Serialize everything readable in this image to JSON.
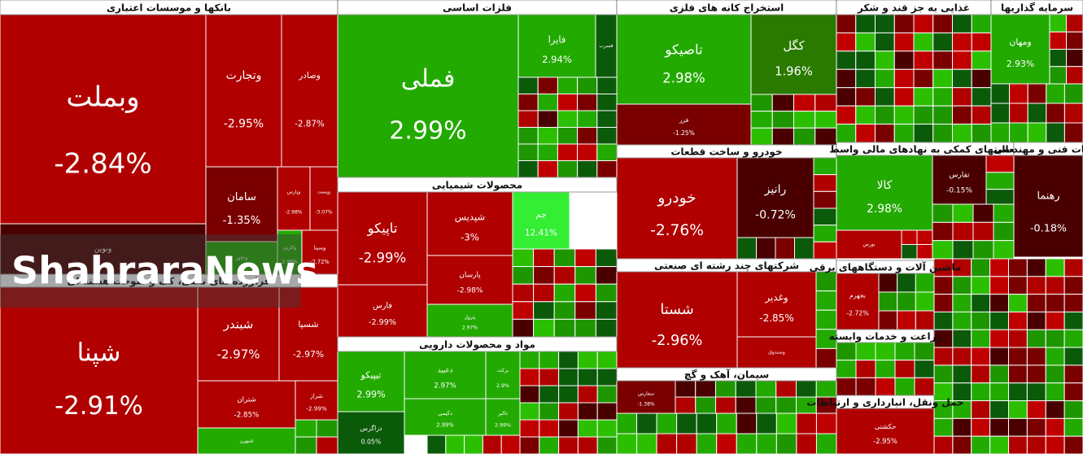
{
  "watermark": "ShahraraNews",
  "sectors": [
    {
      "title": "بانکها و موسسات اعتباری",
      "tiles": [
        {
          "name": "وبملت",
          "change": "-2.84%",
          "color": "#b00000"
        },
        {
          "name": "وتجارت",
          "change": "-2.95%",
          "color": "#b00000"
        },
        {
          "name": "وصادر",
          "change": "-2.87%",
          "color": "#b00000"
        },
        {
          "name": "سامان",
          "change": "-1.35%",
          "color": "#7a0000"
        },
        {
          "name": "وپارس",
          "change": "-2.98%",
          "color": "#b00000"
        },
        {
          "name": "وپست",
          "change": "-3.07%",
          "color": "#b00000"
        },
        {
          "name": "ونوین",
          "color": "#4a0000"
        },
        {
          "name": "وخاور",
          "color": "#22aa00"
        },
        {
          "name": "وکارین",
          "change": "2.98%",
          "color": "#22aa00"
        },
        {
          "name": "وسینا",
          "change": "-2.72%",
          "color": "#b00000"
        }
      ]
    },
    {
      "title": "فراورده های نفتی، کک و سوخت هسته ای",
      "tiles": [
        {
          "name": "شپنا",
          "change": "-2.91%",
          "color": "#b00000"
        },
        {
          "name": "شبندر",
          "change": "-2.97%",
          "color": "#b00000"
        },
        {
          "name": "شسپا",
          "change": "-2.97%",
          "color": "#b00000"
        },
        {
          "name": "شتران",
          "change": "-2.85%",
          "color": "#b00000"
        },
        {
          "name": "شبهرن",
          "color": "#22aa00"
        },
        {
          "name": "شراز",
          "change": "-2.99%",
          "color": "#b00000"
        }
      ]
    },
    {
      "title": "فلزات اساسی",
      "tiles": [
        {
          "name": "فملی",
          "change": "2.99%",
          "color": "#22aa00"
        },
        {
          "name": "فایرا",
          "change": "2.94%",
          "color": "#22aa00"
        },
        {
          "name": "فسرب",
          "color": "#0a5a0a"
        }
      ]
    },
    {
      "title": "محصولات شیمیایی",
      "tiles": [
        {
          "name": "تاپیکو",
          "change": "-2.99%",
          "color": "#b00000"
        },
        {
          "name": "فارس",
          "change": "-2.99%",
          "color": "#b00000"
        },
        {
          "name": "شپدیس",
          "change": "-3%",
          "color": "#b00000"
        },
        {
          "name": "جم",
          "change": "12.41%",
          "color": "#33ee33"
        },
        {
          "name": "پارسان",
          "change": "-2.98%",
          "color": "#b00000"
        },
        {
          "name": "پترول",
          "change": "2.97%",
          "color": "#22aa00"
        }
      ]
    },
    {
      "title": "مواد و محصولات دارویی",
      "tiles": [
        {
          "name": "تیپیکو",
          "change": "2.99%",
          "color": "#22aa00"
        },
        {
          "name": "دزاگرس",
          "change": "0.05%",
          "color": "#0a5a0a"
        },
        {
          "name": "دعبید",
          "change": "2.97%",
          "color": "#22aa00"
        },
        {
          "name": "برکت",
          "change": "2.9%",
          "color": "#22aa00"
        },
        {
          "name": "دکیمی",
          "change": "2.99%",
          "color": "#22aa00"
        },
        {
          "name": "دالبر",
          "change": "2.99%",
          "color": "#22aa00"
        }
      ]
    },
    {
      "title": "استخراج کانه های فلزی",
      "tiles": [
        {
          "name": "تاصیکو",
          "change": "2.98%",
          "color": "#22aa00"
        },
        {
          "name": "کگل",
          "change": "1.96%",
          "color": "#2a7a00"
        },
        {
          "name": "فزر",
          "change": "-1.25%",
          "color": "#7a0000"
        }
      ]
    },
    {
      "title": "خودرو و ساخت قطعات",
      "tiles": [
        {
          "name": "خودرو",
          "change": "-2.76%",
          "color": "#b00000"
        },
        {
          "name": "رانیز",
          "change": "-0.72%",
          "color": "#4a0000"
        }
      ]
    },
    {
      "title": "شرکتهای چند رشته ای صنعتی",
      "tiles": [
        {
          "name": "شستا",
          "change": "-2.96%",
          "color": "#b00000"
        },
        {
          "name": "وغدیر",
          "change": "-2.85%",
          "color": "#b00000"
        },
        {
          "name": "وصندوق",
          "color": "#b00000"
        }
      ]
    },
    {
      "title": "سیمان، آهک و گچ",
      "tiles": [
        {
          "name": "سفارس",
          "change": "-1.38%",
          "color": "#7a0000"
        }
      ]
    },
    {
      "title": "غذایی به جز قند و شکر",
      "tiles": []
    },
    {
      "title": "سرمایه گذاریها",
      "tiles": [
        {
          "name": "ومهان",
          "change": "2.93%",
          "color": "#22aa00"
        }
      ]
    },
    {
      "title": "فعالیتهای کمکی به نهادهای مالی واسط",
      "tiles": [
        {
          "name": "کالا",
          "change": "2.98%",
          "color": "#22aa00"
        },
        {
          "name": "تفارس",
          "change": "-0.15%",
          "color": "#4a0000"
        },
        {
          "name": "بورس",
          "color": "#b00000"
        }
      ]
    },
    {
      "title": "خدمات فنی و مهندسی",
      "tiles": [
        {
          "name": "رهنما",
          "change": "-0.18%",
          "color": "#4a0000"
        }
      ]
    },
    {
      "title": "ماشین آلات و دستگاههای برقی",
      "tiles": [
        {
          "name": "بجهرم",
          "change": "-2.72%",
          "color": "#b00000"
        }
      ]
    },
    {
      "title": "زراعت و خدمات وابسته",
      "tiles": []
    },
    {
      "title": "حمل ونقل، انبارداری و ارتباطات",
      "tiles": [
        {
          "name": "حکشتی",
          "change": "-2.95%",
          "color": "#b00000"
        }
      ]
    }
  ]
}
